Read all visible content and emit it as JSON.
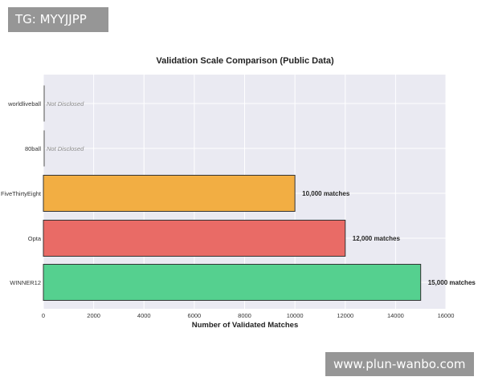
{
  "watermarks": {
    "top_left": "TG: MYYJJPP",
    "bottom_right": "www.plun-wanbo.com"
  },
  "colors": {
    "plot_background": "#eaeaf2",
    "grid": "#ffffff",
    "bar_edge": "#333333",
    "opta": "#e96b66",
    "winner12": "#55d08f",
    "fivethirtyeight": "#f2ae43",
    "undisclosed_marker": "#888888"
  },
  "chart_data": {
    "type": "bar",
    "orientation": "horizontal",
    "title": "Validation Scale Comparison (Public Data)",
    "xlabel": "Number of Validated Matches",
    "ylabel": "",
    "xlim": [
      0,
      16000
    ],
    "xticks": [
      0,
      2000,
      4000,
      6000,
      8000,
      10000,
      12000,
      14000,
      16000
    ],
    "grid": true,
    "legend": "none",
    "categories": [
      "worldliveball",
      "80ball",
      "FiveThirtyEight",
      "Opta",
      "WINNER12"
    ],
    "values": [
      null,
      null,
      10000,
      12000,
      15000
    ],
    "data_labels": [
      "Not Disclosed",
      "Not Disclosed",
      "10,000 matches",
      "12,000 matches",
      "15,000 matches"
    ],
    "bar_colors": [
      "#888888",
      "#888888",
      "#f2ae43",
      "#e96b66",
      "#55d08f"
    ]
  }
}
